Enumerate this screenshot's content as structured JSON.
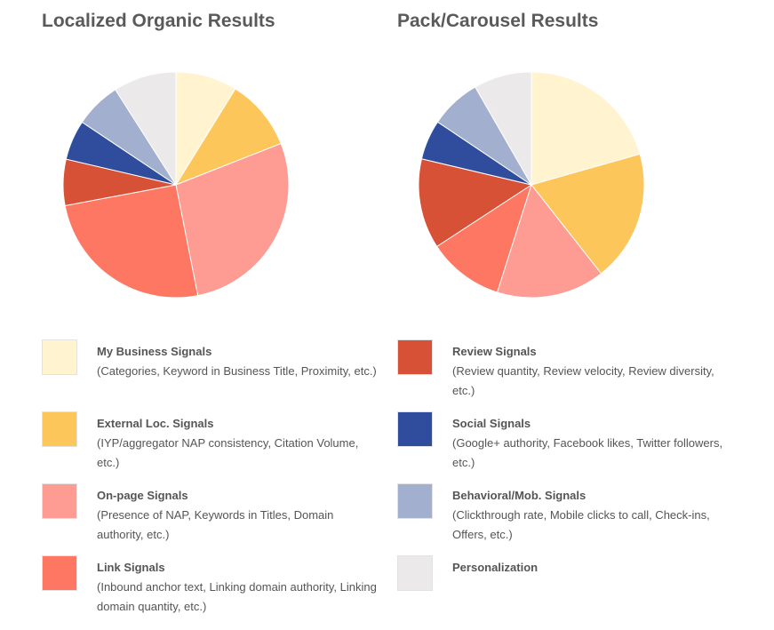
{
  "chart_data": [
    {
      "type": "pie",
      "title": "Localized Organic Results",
      "categories": [
        "My Business Signals",
        "External Loc. Signals",
        "On-page Signals",
        "Link Signals",
        "Review Signals",
        "Social Signals",
        "Behavioral/Mob. Signals",
        "Personalization"
      ],
      "values": [
        8.8,
        10.2,
        27.8,
        25.1,
        6.6,
        5.7,
        6.6,
        9.0
      ]
    },
    {
      "type": "pie",
      "title": "Pack/Carousel Results",
      "categories": [
        "My Business Signals",
        "External Loc. Signals",
        "On-page Signals",
        "Link Signals",
        "Review Signals",
        "Social Signals",
        "Behavioral/Mob. Signals",
        "Personalization"
      ],
      "values": [
        20.6,
        18.8,
        15.5,
        10.9,
        12.9,
        5.7,
        7.3,
        8.3
      ]
    }
  ],
  "legend": {
    "left": [
      {
        "label": "My Business Signals",
        "desc": "(Categories, Keyword in Business Title, Proximity, etc.)",
        "color": "#fff3d0"
      },
      {
        "label": "External Loc. Signals",
        "desc": "(IYP/aggregator NAP consistency, Citation Volume, etc.)",
        "color": "#fcc65a"
      },
      {
        "label": "On-page Signals",
        "desc": "(Presence of NAP, Keywords in Titles, Domain authority, etc.)",
        "color": "#fe9b93"
      },
      {
        "label": "Link Signals",
        "desc": "(Inbound anchor text, Linking domain authority, Linking domain quantity, etc.)",
        "color": "#fe7762"
      }
    ],
    "right": [
      {
        "label": "Review Signals",
        "desc": "(Review quantity, Review velocity, Review diversity, etc.)",
        "color": "#d75136"
      },
      {
        "label": "Social Signals",
        "desc": "(Google+ authority, Facebook likes, Twitter followers, etc.)",
        "color": "#2f4d9c"
      },
      {
        "label": "Behavioral/Mob. Signals",
        "desc": "(Clickthrough rate, Mobile clicks to call, Check-ins, Offers, etc.)",
        "color": "#a2afcf"
      },
      {
        "label": "Personalization",
        "desc": "",
        "color": "#ebe9ea"
      }
    ]
  },
  "colors": [
    "#fff3d0",
    "#fcc65a",
    "#fe9b93",
    "#fe7762",
    "#d75136",
    "#2f4d9c",
    "#a2afcf",
    "#ebe9ea"
  ]
}
